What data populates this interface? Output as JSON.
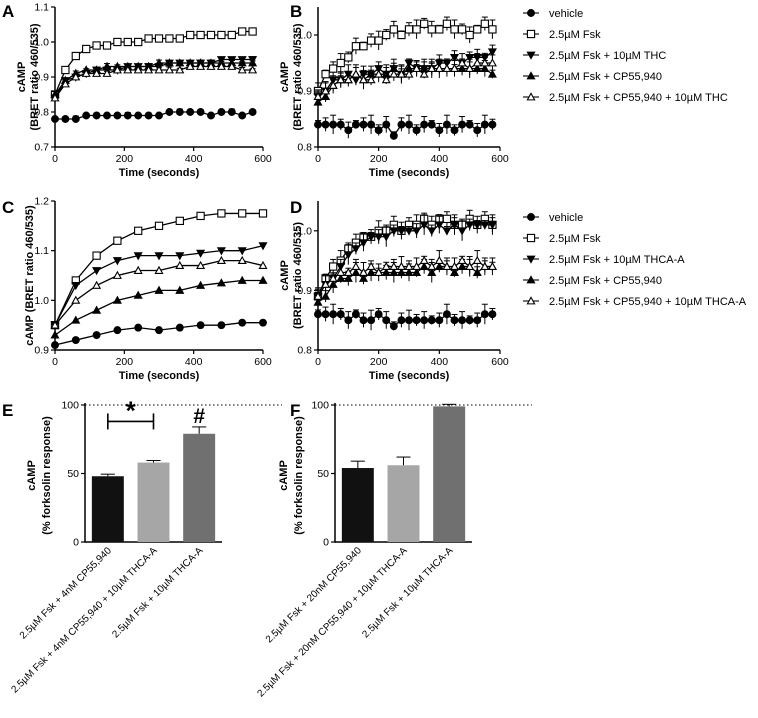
{
  "chart_data": [
    {
      "panel": "A",
      "type": "line",
      "xlabel": "Time (seconds)",
      "ylabel_line1": "cAMP",
      "ylabel_line2": "(BRET ratio 460/535)",
      "xlim": [
        0,
        600
      ],
      "ylim": [
        0.7,
        1.1
      ],
      "xticks": [
        0,
        200,
        400,
        600
      ],
      "xtick_labels": [
        "0",
        "200",
        "400",
        "600"
      ],
      "yticks": [
        0.7,
        0.8,
        0.9,
        1.0,
        1.1
      ],
      "ytick_labels": [
        "0.7",
        "0.8",
        "0.9",
        "1.0",
        "1.1"
      ],
      "x": [
        0,
        30,
        60,
        90,
        120,
        150,
        180,
        210,
        240,
        270,
        300,
        330,
        360,
        390,
        420,
        450,
        480,
        510,
        540,
        570
      ],
      "series": [
        {
          "name": "vehicle",
          "marker": "filled-circle",
          "values": [
            0.78,
            0.78,
            0.78,
            0.79,
            0.79,
            0.79,
            0.79,
            0.79,
            0.79,
            0.79,
            0.79,
            0.8,
            0.8,
            0.8,
            0.8,
            0.79,
            0.8,
            0.8,
            0.79,
            0.8
          ]
        },
        {
          "name": "2.5µM Fsk",
          "marker": "open-square",
          "values": [
            0.85,
            0.92,
            0.96,
            0.98,
            0.99,
            0.99,
            1.0,
            1.0,
            1.0,
            1.01,
            1.01,
            1.01,
            1.01,
            1.02,
            1.02,
            1.02,
            1.02,
            1.02,
            1.03,
            1.03
          ]
        },
        {
          "name": "2.5µM Fsk + 10µM THC",
          "marker": "filled-triangle-down",
          "values": [
            0.84,
            0.89,
            0.9,
            0.91,
            0.92,
            0.92,
            0.92,
            0.93,
            0.93,
            0.93,
            0.93,
            0.94,
            0.94,
            0.94,
            0.94,
            0.94,
            0.95,
            0.95,
            0.95,
            0.95
          ]
        },
        {
          "name": "2.5µM Fsk + CP55,940",
          "marker": "filled-triangle-up",
          "values": [
            0.85,
            0.89,
            0.91,
            0.92,
            0.92,
            0.93,
            0.93,
            0.93,
            0.93,
            0.93,
            0.94,
            0.94,
            0.94,
            0.94,
            0.94,
            0.94,
            0.94,
            0.94,
            0.94,
            0.94
          ]
        },
        {
          "name": "2.5µM Fsk + CP55,940 + 10µM THC",
          "marker": "open-triangle-up",
          "values": [
            0.84,
            0.88,
            0.9,
            0.91,
            0.91,
            0.91,
            0.92,
            0.92,
            0.92,
            0.92,
            0.92,
            0.92,
            0.92,
            0.93,
            0.93,
            0.93,
            0.93,
            0.93,
            0.92,
            0.92
          ]
        }
      ]
    },
    {
      "panel": "B",
      "type": "line",
      "xlabel": "Time (seconds)",
      "ylabel_line1": "cAMP",
      "ylabel_line2": "(BRET ratio 460/535)",
      "xlim": [
        0,
        600
      ],
      "ylim": [
        0.8,
        1.05
      ],
      "xticks": [
        0,
        200,
        400,
        600
      ],
      "xtick_labels": [
        "0",
        "200",
        "400",
        "600"
      ],
      "yticks": [
        0.8,
        0.9,
        1.0
      ],
      "ytick_labels": [
        "0.8",
        "0.9",
        "1.0"
      ],
      "x": [
        0,
        25,
        50,
        75,
        100,
        125,
        150,
        175,
        200,
        225,
        250,
        275,
        300,
        325,
        350,
        375,
        400,
        425,
        450,
        475,
        500,
        525,
        550,
        575
      ],
      "series": [
        {
          "name": "vehicle",
          "marker": "filled-circle",
          "values": [
            0.84,
            0.84,
            0.84,
            0.84,
            0.83,
            0.84,
            0.84,
            0.84,
            0.83,
            0.84,
            0.82,
            0.84,
            0.84,
            0.83,
            0.84,
            0.84,
            0.83,
            0.84,
            0.83,
            0.84,
            0.84,
            0.83,
            0.84,
            0.84
          ]
        },
        {
          "name": "2.5µM Fsk",
          "marker": "open-square",
          "values": [
            0.9,
            0.93,
            0.94,
            0.95,
            0.96,
            0.98,
            0.98,
            0.99,
            0.99,
            1.0,
            1.01,
            1.0,
            1.01,
            1.01,
            1.02,
            1.01,
            1.01,
            1.02,
            1.01,
            1.01,
            1.0,
            1.01,
            1.02,
            1.01
          ]
        },
        {
          "name": "2.5µM Fsk + 10µM THC",
          "marker": "filled-triangle-down",
          "values": [
            0.89,
            0.9,
            0.92,
            0.92,
            0.93,
            0.92,
            0.93,
            0.93,
            0.94,
            0.93,
            0.94,
            0.93,
            0.95,
            0.94,
            0.94,
            0.94,
            0.95,
            0.95,
            0.96,
            0.95,
            0.96,
            0.96,
            0.96,
            0.97
          ]
        },
        {
          "name": "2.5µM Fsk + CP55,940",
          "marker": "filled-triangle-up",
          "values": [
            0.88,
            0.89,
            0.91,
            0.92,
            0.92,
            0.93,
            0.92,
            0.93,
            0.93,
            0.93,
            0.94,
            0.93,
            0.94,
            0.94,
            0.94,
            0.94,
            0.94,
            0.94,
            0.94,
            0.94,
            0.94,
            0.94,
            0.94,
            0.93
          ]
        },
        {
          "name": "2.5µM Fsk + CP55,940 + 10µM THC",
          "marker": "open-triangle-up",
          "values": [
            0.89,
            0.9,
            0.91,
            0.92,
            0.92,
            0.93,
            0.92,
            0.92,
            0.93,
            0.92,
            0.93,
            0.93,
            0.93,
            0.94,
            0.93,
            0.94,
            0.94,
            0.94,
            0.94,
            0.95,
            0.94,
            0.95,
            0.95,
            0.95
          ]
        }
      ],
      "legend": [
        "vehicle",
        "2.5µM Fsk",
        "2.5µM Fsk + 10µM THC",
        "2.5µM Fsk + CP55,940",
        "2.5µM Fsk + CP55,940 + 10µM THC"
      ],
      "legend_position": "right"
    },
    {
      "panel": "C",
      "type": "line",
      "xlabel": "Time (seconds)",
      "ylabel_line1": "cAMP (BRET ratio 460/535)",
      "xlim": [
        0,
        600
      ],
      "ylim": [
        0.9,
        1.2
      ],
      "xticks": [
        0,
        200,
        400,
        600
      ],
      "xtick_labels": [
        "0",
        "200",
        "400",
        "600"
      ],
      "yticks": [
        0.9,
        1.0,
        1.1,
        1.2
      ],
      "ytick_labels": [
        "0.9",
        "1.0",
        "1.1",
        "1.2"
      ],
      "x": [
        0,
        60,
        120,
        180,
        240,
        300,
        360,
        420,
        480,
        540,
        600
      ],
      "series": [
        {
          "name": "vehicle",
          "marker": "filled-circle",
          "values": [
            0.91,
            0.92,
            0.93,
            0.94,
            0.945,
            0.94,
            0.945,
            0.95,
            0.95,
            0.955,
            0.955
          ]
        },
        {
          "name": "2.5µM Fsk",
          "marker": "open-square",
          "values": [
            0.95,
            1.04,
            1.09,
            1.12,
            1.14,
            1.15,
            1.16,
            1.17,
            1.175,
            1.175,
            1.175
          ]
        },
        {
          "name": "2.5µM Fsk + 10µM THCA-A",
          "marker": "filled-triangle-down",
          "values": [
            0.95,
            1.03,
            1.06,
            1.08,
            1.09,
            1.09,
            1.09,
            1.095,
            1.1,
            1.1,
            1.11
          ]
        },
        {
          "name": "2.5µM Fsk + CP55,940",
          "marker": "filled-triangle-up",
          "values": [
            0.93,
            0.96,
            0.98,
            1.0,
            1.01,
            1.02,
            1.02,
            1.03,
            1.035,
            1.04,
            1.04
          ]
        },
        {
          "name": "2.5µM Fsk + CP55,940 + 10µM THCA-A",
          "marker": "open-triangle-up",
          "values": [
            0.95,
            1.0,
            1.03,
            1.05,
            1.06,
            1.06,
            1.07,
            1.07,
            1.08,
            1.08,
            1.07
          ]
        }
      ]
    },
    {
      "panel": "D",
      "type": "line",
      "xlabel": "Time (seconds)",
      "ylabel_line1": "cAMP",
      "ylabel_line2": "(BRET ratio 460/535)",
      "xlim": [
        0,
        600
      ],
      "ylim": [
        0.8,
        1.05
      ],
      "xticks": [
        0,
        200,
        400,
        600
      ],
      "xtick_labels": [
        "0",
        "200",
        "400",
        "600"
      ],
      "yticks": [
        0.8,
        0.9,
        1.0
      ],
      "ytick_labels": [
        "0.8",
        "0.9",
        "1.0"
      ],
      "x": [
        0,
        25,
        50,
        75,
        100,
        125,
        150,
        175,
        200,
        225,
        250,
        275,
        300,
        325,
        350,
        375,
        400,
        425,
        450,
        475,
        500,
        525,
        550,
        575
      ],
      "series": [
        {
          "name": "vehicle",
          "marker": "filled-circle",
          "values": [
            0.86,
            0.86,
            0.86,
            0.86,
            0.85,
            0.86,
            0.85,
            0.85,
            0.86,
            0.85,
            0.84,
            0.85,
            0.85,
            0.85,
            0.85,
            0.85,
            0.85,
            0.86,
            0.85,
            0.85,
            0.85,
            0.85,
            0.86,
            0.86
          ]
        },
        {
          "name": "2.5µM Fsk",
          "marker": "open-square",
          "values": [
            0.89,
            0.92,
            0.94,
            0.95,
            0.97,
            0.98,
            0.99,
            0.99,
            1.0,
            1.0,
            1.01,
            1.0,
            1.01,
            1.01,
            1.02,
            1.01,
            1.02,
            1.02,
            1.01,
            1.01,
            1.02,
            1.01,
            1.02,
            1.01
          ]
        },
        {
          "name": "2.5µM Fsk + 10µM THCA-A",
          "marker": "filled-triangle-down",
          "values": [
            0.89,
            0.91,
            0.92,
            0.94,
            0.96,
            0.97,
            0.98,
            0.99,
            0.99,
            0.99,
            1.0,
            1.0,
            1.0,
            1.0,
            1.01,
            1.0,
            1.01,
            1.0,
            1.01,
            1.0,
            1.01,
            1.01,
            1.01,
            1.01
          ]
        },
        {
          "name": "2.5µM Fsk + CP55,940",
          "marker": "filled-triangle-up",
          "values": [
            0.88,
            0.89,
            0.91,
            0.92,
            0.92,
            0.93,
            0.92,
            0.93,
            0.93,
            0.93,
            0.93,
            0.93,
            0.93,
            0.93,
            0.94,
            0.93,
            0.94,
            0.94,
            0.93,
            0.94,
            0.94,
            0.93,
            0.94,
            0.94
          ]
        },
        {
          "name": "2.5µM Fsk + CP55,940 + 10µM THCA-A",
          "marker": "open-triangle-up",
          "values": [
            0.89,
            0.91,
            0.92,
            0.93,
            0.93,
            0.94,
            0.93,
            0.94,
            0.93,
            0.94,
            0.94,
            0.94,
            0.94,
            0.94,
            0.95,
            0.94,
            0.95,
            0.94,
            0.94,
            0.95,
            0.94,
            0.95,
            0.94,
            0.94
          ]
        }
      ],
      "legend": [
        "vehicle",
        "2.5µM Fsk",
        "2.5µM Fsk + 10µM THCA-A",
        "2.5µM Fsk + CP55,940",
        "2.5µM Fsk + CP55,940 + 10µM THCA-A"
      ],
      "legend_position": "right"
    },
    {
      "panel": "E",
      "type": "bar",
      "ylabel_line1": "cAMP",
      "ylabel_line2": "(% forksolin response)",
      "ylim": [
        0,
        100
      ],
      "yticks": [
        0,
        50,
        100
      ],
      "ytick_labels": [
        "0",
        "50",
        "100"
      ],
      "categories": [
        "2.5µM Fsk + 4nM CP55,940",
        "2.5µM Fsk + 4nM CP55,940 + 10µM THCA-A",
        "2.5µM Fsk + 10µM THCA-A"
      ],
      "values": [
        48,
        58,
        79
      ],
      "errors": [
        1.5,
        1.5,
        5
      ],
      "bar_colors": [
        "#111111",
        "#a6a6a6",
        "#707070"
      ],
      "reference_line": 100,
      "annotations": [
        {
          "text": "*",
          "type": "bracket",
          "between": [
            0,
            1
          ],
          "at_value": 88
        },
        {
          "text": "#",
          "type": "above-bar",
          "bar": 2
        }
      ]
    },
    {
      "panel": "F",
      "type": "bar",
      "ylabel_line1": "cAMP",
      "ylabel_line2": "(% forksolin response)",
      "ylim": [
        0,
        100
      ],
      "yticks": [
        0,
        50,
        100
      ],
      "ytick_labels": [
        "0",
        "50",
        "100"
      ],
      "categories": [
        "2.5µM Fsk + 20nM CP55,940",
        "2.5µM Fsk + 20nM CP55,940 + 10µM THCA-A",
        "2.5µM Fsk + 10µM THCA-A"
      ],
      "values": [
        54,
        56,
        99
      ],
      "errors": [
        5,
        6,
        1.5
      ],
      "bar_colors": [
        "#111111",
        "#a6a6a6",
        "#707070"
      ],
      "reference_line": 100
    }
  ]
}
